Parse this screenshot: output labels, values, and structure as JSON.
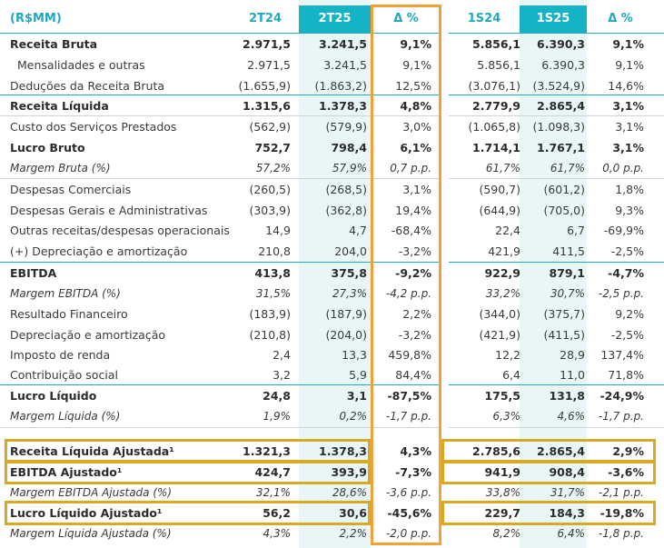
{
  "header": {
    "unit_label": "(R$MM)",
    "columns": [
      "2T24",
      "2T25",
      "Δ %",
      "1S24",
      "1S25",
      "Δ %"
    ]
  },
  "rows": [
    {
      "label": "Receita Bruta",
      "values": [
        "2.971,5",
        "3.241,5",
        "9,1%",
        "5.856,1",
        "6.390,3",
        "9,1%"
      ]
    },
    {
      "label": "Mensalidades e outras",
      "values": [
        "2.971,5",
        "3.241,5",
        "9,1%",
        "5.856,1",
        "6.390,3",
        "9,1%"
      ]
    },
    {
      "label": "Deduções da Receita Bruta",
      "values": [
        "(1.655,9)",
        "(1.863,2)",
        "12,5%",
        "(3.076,1)",
        "(3.524,9)",
        "14,6%"
      ]
    },
    {
      "label": "Receita Líquida",
      "values": [
        "1.315,6",
        "1.378,3",
        "4,8%",
        "2.779,9",
        "2.865,4",
        "3,1%"
      ]
    },
    {
      "label": "Custo dos Serviços Prestados",
      "values": [
        "(562,9)",
        "(579,9)",
        "3,0%",
        "(1.065,8)",
        "(1.098,3)",
        "3,1%"
      ]
    },
    {
      "label": "Lucro Bruto",
      "values": [
        "752,7",
        "798,4",
        "6,1%",
        "1.714,1",
        "1.767,1",
        "3,1%"
      ]
    },
    {
      "label": "Margem Bruta (%)",
      "values": [
        "57,2%",
        "57,9%",
        "0,7 p.p.",
        "61,7%",
        "61,7%",
        "0,0 p.p."
      ]
    },
    {
      "label": "Despesas Comerciais",
      "values": [
        "(260,5)",
        "(268,5)",
        "3,1%",
        "(590,7)",
        "(601,2)",
        "1,8%"
      ]
    },
    {
      "label": "Despesas Gerais e Administrativas",
      "values": [
        "(303,9)",
        "(362,8)",
        "19,4%",
        "(644,9)",
        "(705,0)",
        "9,3%"
      ]
    },
    {
      "label": "Outras receitas/despesas operacionais",
      "values": [
        "14,9",
        "4,7",
        "-68,4%",
        "22,4",
        "6,7",
        "-69,9%"
      ]
    },
    {
      "label": "(+) Depreciação e amortização",
      "values": [
        "210,8",
        "204,0",
        "-3,2%",
        "421,9",
        "411,5",
        "-2,5%"
      ]
    },
    {
      "label": "EBITDA",
      "values": [
        "413,8",
        "375,8",
        "-9,2%",
        "922,9",
        "879,1",
        "-4,7%"
      ]
    },
    {
      "label": "Margem EBITDA (%)",
      "values": [
        "31,5%",
        "27,3%",
        "-4,2 p.p.",
        "33,2%",
        "30,7%",
        "-2,5 p.p."
      ]
    },
    {
      "label": "Resultado Financeiro",
      "values": [
        "(183,9)",
        "(187,9)",
        "2,2%",
        "(344,0)",
        "(375,7)",
        "9,2%"
      ]
    },
    {
      "label": "Depreciação e amortização",
      "values": [
        "(210,8)",
        "(204,0)",
        "-3,2%",
        "(421,9)",
        "(411,5)",
        "-2,5%"
      ]
    },
    {
      "label": "Imposto de renda",
      "values": [
        "2,4",
        "13,3",
        "459,8%",
        "12,2",
        "28,9",
        "137,4%"
      ]
    },
    {
      "label": "Contribuição social",
      "values": [
        "3,2",
        "5,9",
        "84,4%",
        "6,4",
        "11,0",
        "71,8%"
      ]
    },
    {
      "label": "Lucro Líquido",
      "values": [
        "24,8",
        "3,1",
        "-87,5%",
        "175,5",
        "131,8",
        "-24,9%"
      ]
    },
    {
      "label": "Margem Líquida (%)",
      "values": [
        "1,9%",
        "0,2%",
        "-1,7 p.p.",
        "6,3%",
        "4,6%",
        "-1,7 p.p."
      ]
    },
    {
      "label": "Receita Líquida Ajustada¹",
      "values": [
        "1.321,3",
        "1.378,3",
        "4,3%",
        "2.785,6",
        "2.865,4",
        "2,9%"
      ]
    },
    {
      "label": "EBITDA Ajustado¹",
      "values": [
        "424,7",
        "393,9",
        "-7,3%",
        "941,9",
        "908,4",
        "-3,6%"
      ]
    },
    {
      "label": "Margem EBITDA Ajustada (%)",
      "values": [
        "32,1%",
        "28,6%",
        "-3,6 p.p.",
        "33,8%",
        "31,7%",
        "-2,1 p.p."
      ]
    },
    {
      "label": "Lucro Líquido Ajustado¹",
      "values": [
        "56,2",
        "30,6",
        "-45,6%",
        "229,7",
        "184,3",
        "-19,8%"
      ]
    },
    {
      "label": "Margem Líquida Ajustada (%)",
      "values": [
        "4,3%",
        "2,2%",
        "-2,0 p.p.",
        "8,2%",
        "6,4%",
        "-1,8 p.p."
      ]
    }
  ],
  "colors": {
    "accent_teal": "#16b2c6",
    "highlight_column": "#e8f6f8",
    "gold_box": "#d8aa22",
    "orange_box": "#f2a238"
  }
}
